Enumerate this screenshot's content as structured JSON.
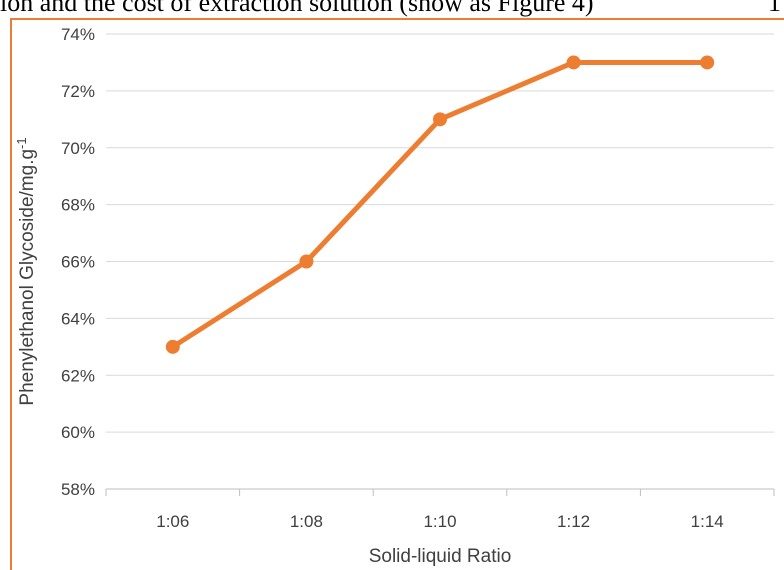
{
  "caption": {
    "text": "ion and the cost of extraction solution (show as Figure 4)",
    "page_number": "1"
  },
  "chart_data": {
    "type": "line",
    "categories": [
      "1:06",
      "1:08",
      "1:10",
      "1:12",
      "1:14"
    ],
    "series": [
      {
        "values": [
          63,
          66,
          71,
          73,
          73
        ],
        "color": "#ED7D31"
      }
    ],
    "xlabel": "Solid-liquid Ratio",
    "ylabel": "Phenylethanol Glycoside/mg.g",
    "ylabel_superscript": "-1",
    "ylim": [
      58,
      74
    ],
    "yticks": [
      "58%",
      "60%",
      "62%",
      "64%",
      "66%",
      "68%",
      "70%",
      "72%",
      "74%"
    ],
    "grid": "horizontal",
    "legend": "none"
  }
}
